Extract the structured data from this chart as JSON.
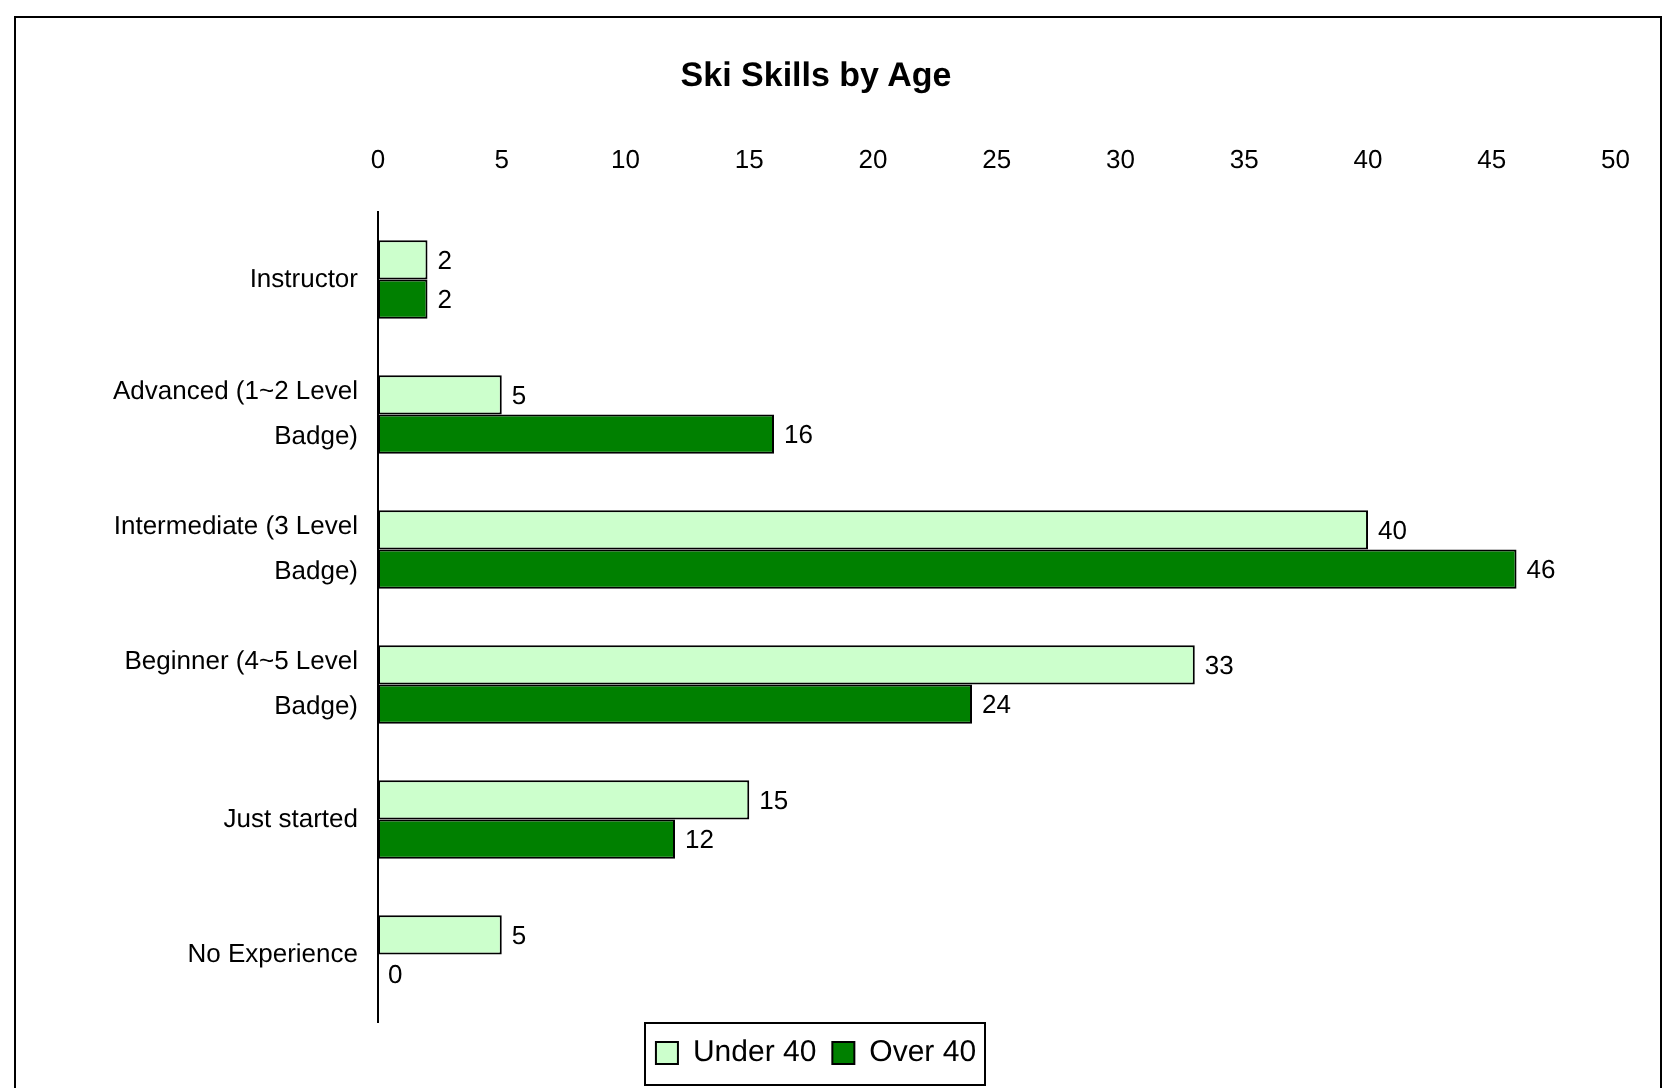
{
  "chart_data": {
    "type": "bar",
    "title": "Ski Skills by Age",
    "orientation": "horizontal",
    "categories": [
      "Instructor",
      "Advanced (1~2 Level Badge)",
      "Intermediate (3 Level Badge)",
      "Beginner (4~5 Level Badge)",
      "Just started",
      "No Experience"
    ],
    "series": [
      {
        "name": "Under 40",
        "color": "#ccffcc",
        "values": [
          2,
          5,
          40,
          33,
          15,
          5
        ]
      },
      {
        "name": "Over 40",
        "color": "#008000",
        "values": [
          2,
          16,
          46,
          24,
          12,
          0
        ]
      }
    ],
    "xlim": [
      0,
      50
    ],
    "xticks": [
      0,
      5,
      10,
      15,
      20,
      25,
      30,
      35,
      40,
      45,
      50
    ],
    "data_labels": true,
    "legend": "bottom",
    "grid": false
  }
}
